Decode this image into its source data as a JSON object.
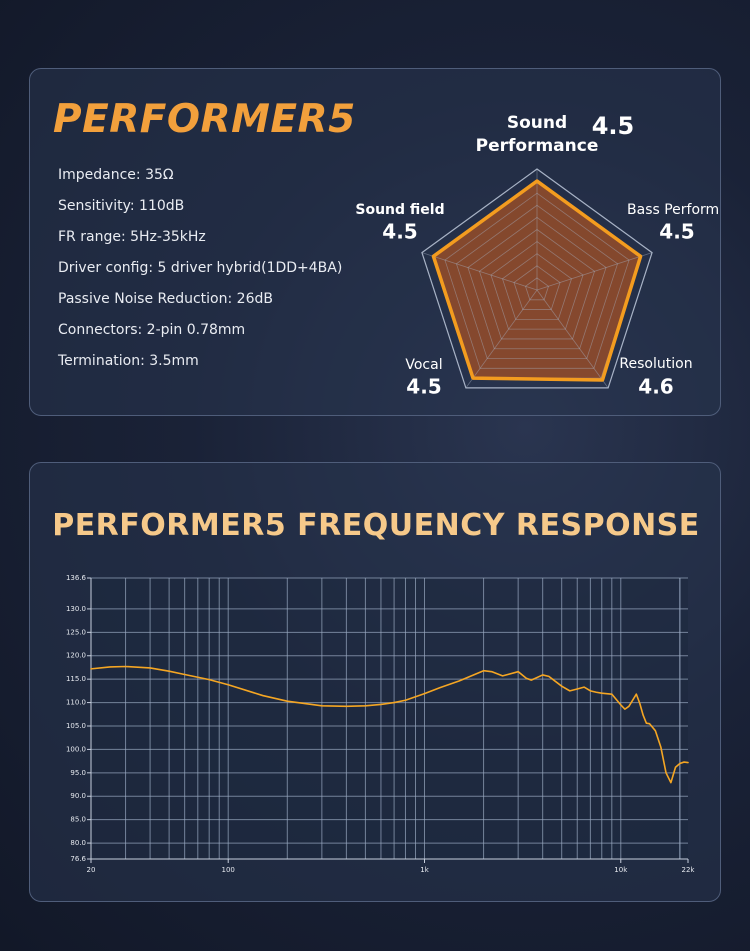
{
  "header": {
    "title": "PERFORMER5"
  },
  "specs": [
    "Impedance: 35Ω",
    "Sensitivity: 110dB",
    "FR range: 5Hz-35kHz",
    "Driver config: 5 driver hybrid(1DD+4BA)",
    "Passive Noise Reduction: 26dB",
    "Connectors: 2-pin 0.78mm",
    "Termination: 3.5mm"
  ],
  "radar": {
    "max": 5,
    "axes": [
      {
        "label": [
          "Sound",
          "Performance"
        ],
        "value": 4.5,
        "value_text": "4.5"
      },
      {
        "label": [
          "Bass Performance"
        ],
        "value": 4.5,
        "value_text": "4.5"
      },
      {
        "label": [
          "Resolution"
        ],
        "value": 4.6,
        "value_text": "4.6"
      },
      {
        "label": [
          "Vocal"
        ],
        "value": 4.5,
        "value_text": "4.5"
      },
      {
        "label": [
          "Sound field"
        ],
        "value": 4.5,
        "value_text": "4.5"
      }
    ],
    "colors": {
      "fill": "#8a4a2c",
      "stroke": "#f39c1f",
      "grid": "#a8b3c6"
    }
  },
  "chart_data": {
    "type": "line",
    "title": "PERFORMER5  FREQUENCY RESPONSE",
    "x_scale": "log",
    "xlim": [
      20,
      22000
    ],
    "ylim": [
      76.6,
      136.6
    ],
    "x_tick_labels": [
      {
        "value": 20,
        "label": "20"
      },
      {
        "value": 100,
        "label": "100"
      },
      {
        "value": 1000,
        "label": "1k"
      },
      {
        "value": 10000,
        "label": "10k"
      },
      {
        "value": 22000,
        "label": "22k"
      }
    ],
    "y_ticks": [
      76.6,
      80,
      85,
      90,
      95,
      100,
      105,
      110,
      115,
      120,
      125,
      130,
      136.6
    ],
    "y_tick_labels": [
      "76.6",
      "80.0",
      "85.0",
      "90.0",
      "95.0",
      "100.0",
      "105.0",
      "110.0",
      "115.0",
      "120.0",
      "125.0",
      "130.0",
      "136.6"
    ],
    "grid": true,
    "series": [
      {
        "color": "#f5a623",
        "x": [
          20,
          25,
          30,
          40,
          50,
          60,
          80,
          100,
          150,
          200,
          300,
          400,
          500,
          600,
          700,
          800,
          1000,
          1200,
          1500,
          2000,
          2200,
          2500,
          3000,
          3300,
          3500,
          4000,
          4300,
          5000,
          5500,
          6000,
          6500,
          7000,
          7500,
          8000,
          9000,
          10000,
          10500,
          11000,
          12000,
          12500,
          13000,
          13500,
          14000,
          15000,
          16000,
          17000,
          18000,
          19000,
          20000,
          21000,
          22000
        ],
        "y": [
          117.2,
          117.6,
          117.7,
          117.4,
          116.7,
          116.0,
          114.9,
          113.8,
          111.5,
          110.3,
          109.3,
          109.2,
          109.3,
          109.6,
          110.0,
          110.5,
          111.9,
          113.2,
          114.6,
          116.8,
          116.6,
          115.7,
          116.6,
          115.2,
          114.8,
          115.9,
          115.6,
          113.5,
          112.5,
          112.9,
          113.3,
          112.5,
          112.2,
          112.0,
          111.8,
          109.5,
          108.6,
          109.2,
          111.8,
          109.8,
          107.3,
          105.6,
          105.5,
          104.0,
          100.5,
          95.0,
          92.9,
          96.2,
          97.0,
          97.3,
          97.2
        ]
      }
    ]
  }
}
